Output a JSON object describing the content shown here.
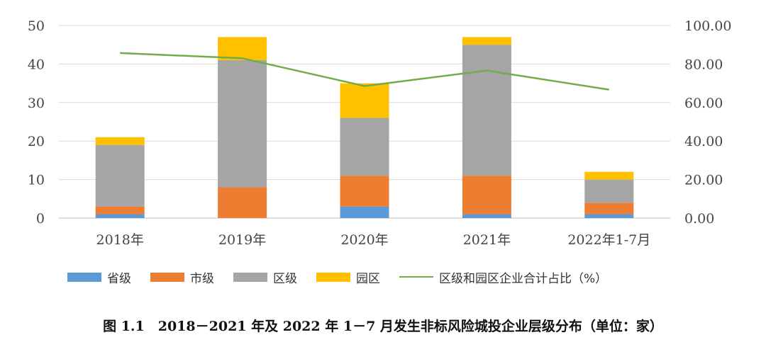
{
  "chart_data": {
    "type": "bar",
    "stacked": true,
    "categories": [
      "2018年",
      "2019年",
      "2020年",
      "2021年",
      "2022年1-7月"
    ],
    "series": [
      {
        "name": "省级",
        "values": [
          1,
          0,
          3,
          1,
          1
        ],
        "color": "#5B9BD5"
      },
      {
        "name": "市级",
        "values": [
          2,
          8,
          8,
          10,
          3
        ],
        "color": "#ED7D31"
      },
      {
        "name": "区级",
        "values": [
          16,
          33,
          15,
          34,
          6
        ],
        "color": "#A5A5A5"
      },
      {
        "name": "园区",
        "values": [
          2,
          6,
          9,
          2,
          2
        ],
        "color": "#FFC000"
      }
    ],
    "line_series": {
      "name": "区级和园区企业合计占比（%）",
      "values": [
        85.71,
        82.98,
        68.57,
        76.6,
        66.67
      ],
      "color": "#70AD47",
      "axis": "right"
    },
    "y_left": {
      "min": 0,
      "max": 50,
      "ticks": [
        "0",
        "10",
        "20",
        "30",
        "40",
        "50"
      ]
    },
    "y_right": {
      "min": 0,
      "max": 100,
      "ticks": [
        "0.00",
        "20.00",
        "40.00",
        "60.00",
        "80.00",
        "100.00"
      ]
    },
    "grid": true,
    "legend_position": "bottom"
  },
  "caption": "图 1.1　2018－2021 年及 2022 年 1－7 月发生非标风险城投企业层级分布（单位：家）"
}
